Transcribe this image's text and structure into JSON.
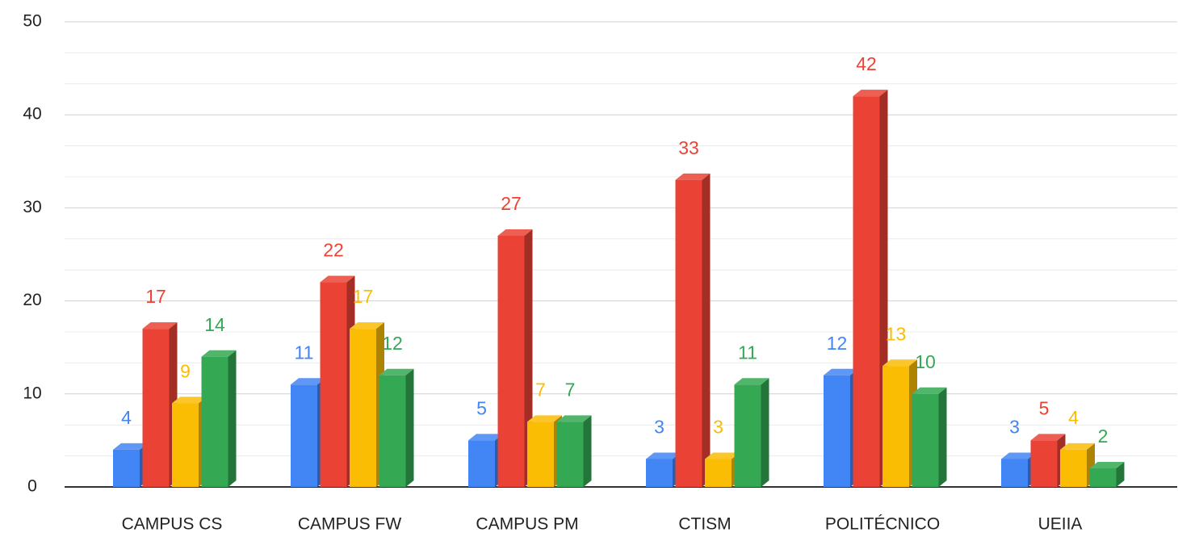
{
  "chart_data": {
    "type": "bar3d",
    "categories": [
      "CAMPUS CS",
      "CAMPUS FW",
      "CAMPUS PM",
      "CTISM",
      "POLITÉCNICO",
      "UEIIA"
    ],
    "series": [
      {
        "color": "#4285f4",
        "values": [
          4,
          11,
          5,
          3,
          12,
          3
        ]
      },
      {
        "color": "#ea4335",
        "values": [
          17,
          22,
          27,
          33,
          42,
          5
        ]
      },
      {
        "color": "#fbbc04",
        "values": [
          9,
          17,
          7,
          3,
          13,
          4
        ]
      },
      {
        "color": "#34a853",
        "values": [
          14,
          12,
          7,
          11,
          10,
          2
        ]
      }
    ],
    "ylim": [
      0,
      50
    ],
    "yticks": [
      0,
      10,
      20,
      30,
      40,
      50
    ],
    "grid": true
  }
}
